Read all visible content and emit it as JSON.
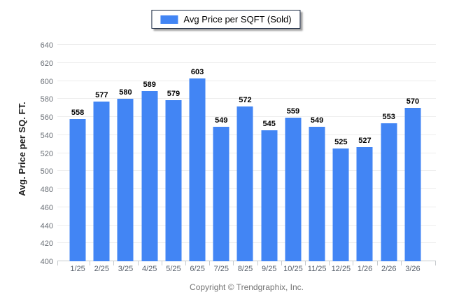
{
  "legend": {
    "label": "Avg Price per SQFT (Sold)",
    "swatch_color": "#4285f4"
  },
  "footer": {
    "copyright": "Copyright © Trendgraphix, Inc."
  },
  "chart_data": {
    "type": "bar",
    "title": "",
    "xlabel": "",
    "ylabel": "Avg. Price per SQ. FT.",
    "categories": [
      "1/25",
      "2/25",
      "3/25",
      "4/25",
      "5/25",
      "6/25",
      "7/25",
      "8/25",
      "9/25",
      "10/25",
      "11/25",
      "12/25",
      "1/26",
      "2/26",
      "3/26"
    ],
    "values": [
      558,
      577,
      580,
      589,
      579,
      603,
      549,
      572,
      545,
      559,
      549,
      525,
      527,
      553,
      570
    ],
    "ylim": [
      400,
      640
    ],
    "ytick_step": 20,
    "grid": true,
    "legend_position": "top-center",
    "bar_color": "#4285f4"
  }
}
